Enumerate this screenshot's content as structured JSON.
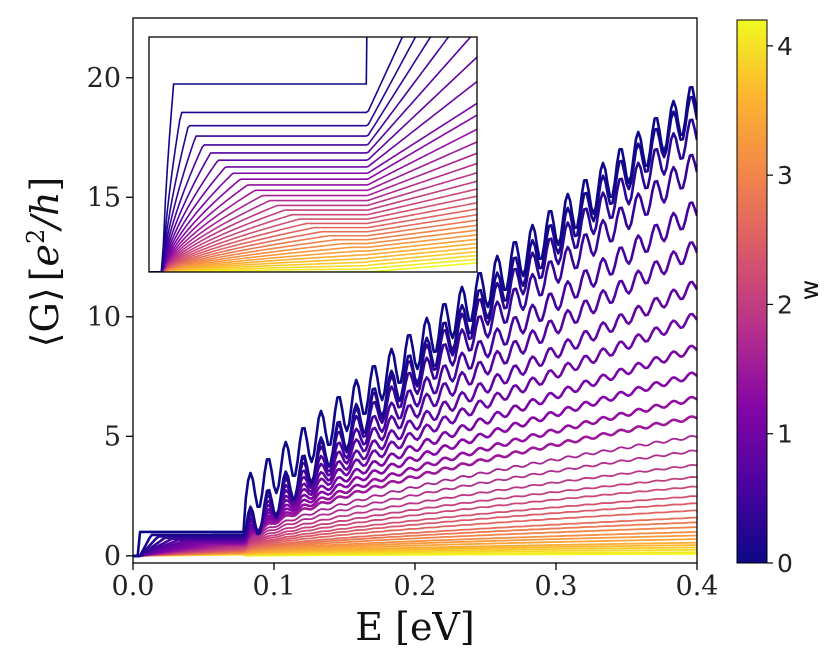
{
  "chart_data": {
    "type": "line",
    "title": "",
    "xlabel": "E [eV]",
    "ylabel_parts": {
      "bracket_open": "⟨",
      "G": "G",
      "bracket_close": "⟩",
      "unit_open": "[",
      "e": "e",
      "sup": "2",
      "h": "/h",
      "unit_close": "]"
    },
    "xlim": [
      0.0,
      0.4
    ],
    "ylim": [
      -0.3,
      22.5
    ],
    "xticks": [
      0.0,
      0.1,
      0.2,
      0.3,
      0.4
    ],
    "xtick_labels": [
      "0.0",
      "0.1",
      "0.2",
      "0.3",
      "0.4"
    ],
    "yticks": [
      0,
      5,
      10,
      15,
      20
    ],
    "ytick_labels": [
      "0",
      "5",
      "10",
      "15",
      "20"
    ],
    "grid": false,
    "colorbar": {
      "label": "w",
      "range": [
        0,
        4.2
      ],
      "ticks": [
        0,
        1,
        2,
        3,
        4
      ],
      "tick_labels": [
        "0",
        "1",
        "2",
        "3",
        "4"
      ],
      "colormap": "plasma"
    },
    "series_description": "Disorder-averaged conductance curves for disorder strengths w from 0 to 4.2",
    "series_count": 32,
    "first_step_energy": 0.005,
    "second_step_energy": 0.08,
    "plateau_value": 1.0,
    "final_values": [
      19.0,
      18.7,
      17.8,
      16.4,
      14.5,
      12.9,
      11.3,
      10.0,
      8.7,
      7.6,
      6.6,
      5.8,
      5.0,
      4.4,
      3.8,
      3.3,
      2.9,
      2.5,
      2.2,
      1.9,
      1.6,
      1.4,
      1.2,
      1.0,
      0.85,
      0.7,
      0.55,
      0.45,
      0.35,
      0.25,
      0.15,
      0.08
    ],
    "inset": {
      "description": "Zoom of low-energy region showing plateau near G = 1",
      "xlim": [
        0.0,
        0.12
      ],
      "ylim": [
        0.0,
        1.25
      ]
    }
  }
}
